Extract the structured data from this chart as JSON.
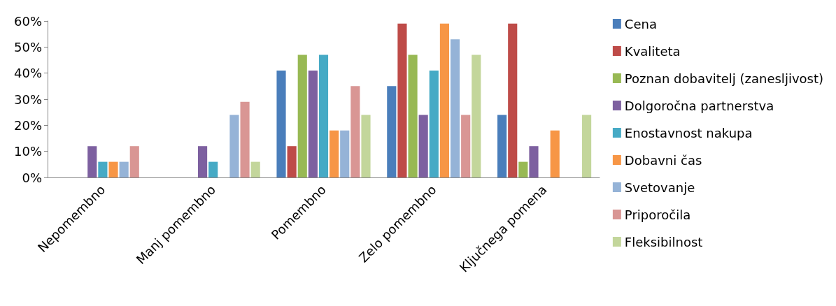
{
  "chart_data": {
    "type": "bar",
    "categories": [
      "Nepomembno",
      "Manj pomembno",
      "Pomembno",
      "Zelo pomembno",
      "Ključnega pomena"
    ],
    "series": [
      {
        "name": "Cena",
        "color": "#4a7ebb",
        "values": [
          0,
          0,
          41,
          35,
          24
        ]
      },
      {
        "name": "Kvaliteta",
        "color": "#be4b48",
        "values": [
          0,
          0,
          12,
          59,
          59
        ]
      },
      {
        "name": "Poznan dobavitelj (zanesljivost)",
        "color": "#98b954",
        "values": [
          0,
          0,
          47,
          47,
          6
        ]
      },
      {
        "name": "Dolgoročna partnerstva",
        "color": "#7d60a0",
        "values": [
          12,
          12,
          41,
          24,
          12
        ]
      },
      {
        "name": "Enostavnost nakupa",
        "color": "#46aac5",
        "values": [
          6,
          6,
          47,
          41,
          0
        ]
      },
      {
        "name": "Dobavni čas",
        "color": "#f79646",
        "values": [
          6,
          0,
          18,
          59,
          18
        ]
      },
      {
        "name": "Svetovanje",
        "color": "#95b3d7",
        "values": [
          6,
          24,
          18,
          53,
          0
        ]
      },
      {
        "name": "Priporočila",
        "color": "#d99694",
        "values": [
          12,
          29,
          35,
          24,
          0
        ]
      },
      {
        "name": "Fleksibilnost",
        "color": "#c3d69b",
        "values": [
          0,
          6,
          24,
          47,
          24
        ]
      }
    ],
    "ylim": [
      0,
      60
    ],
    "yticks": [
      {
        "value": 0,
        "label": "0%"
      },
      {
        "value": 10,
        "label": "10%"
      },
      {
        "value": 20,
        "label": "20%"
      },
      {
        "value": 30,
        "label": "30%"
      },
      {
        "value": 40,
        "label": "40%"
      },
      {
        "value": 50,
        "label": "50%"
      },
      {
        "value": 60,
        "label": "60%"
      }
    ],
    "grid": false,
    "legend": "right"
  }
}
